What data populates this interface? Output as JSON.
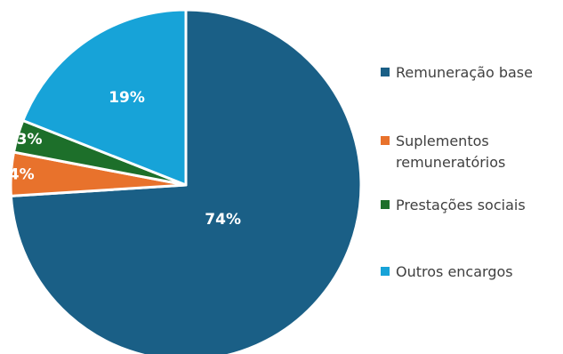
{
  "chart_data": {
    "type": "pie",
    "slices": [
      {
        "label": "Remuneração base",
        "value": 74,
        "value_label": "74%",
        "color": "#1a5f86"
      },
      {
        "label": "Suplementos remuneratórios",
        "label_lines": [
          "Suplementos",
          "remuneratórios"
        ],
        "value": 4,
        "value_label": "4%",
        "color": "#e8722c"
      },
      {
        "label": "Prestações sociais",
        "value": 3,
        "value_label": "3%",
        "color": "#1d6f2a"
      },
      {
        "label": "Outros encargos",
        "value": 19,
        "value_label": "19%",
        "color": "#17a3d8"
      }
    ],
    "legend_position": "right"
  }
}
